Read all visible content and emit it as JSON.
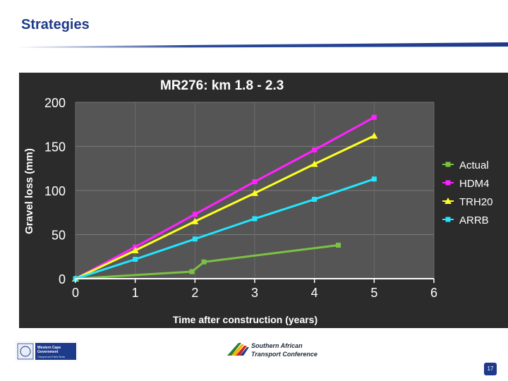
{
  "slide": {
    "title": "Strategies",
    "page_number": "17"
  },
  "footer": {
    "left_logo_line1": "Western Cape",
    "left_logo_line2": "Government",
    "left_logo_line3": "Transport and Public Works",
    "center_logo_line1": "Southern African",
    "center_logo_line2": "Transport Conference"
  },
  "colors": {
    "title": "#1f3a8a",
    "plot_bg": "#555555",
    "actual": "#7cc242",
    "hdm4": "#ff22ff",
    "trh20": "#ffff22",
    "arrb": "#22e6ff"
  },
  "chart_data": {
    "type": "line",
    "title": "MR276: km 1.8 - 2.3",
    "xlabel": "Time after construction (years)",
    "ylabel": "Gravel loss (mm)",
    "xlim": [
      0,
      6
    ],
    "ylim": [
      0,
      200
    ],
    "x_ticks": [
      0,
      1,
      2,
      3,
      4,
      5,
      6
    ],
    "y_ticks": [
      0,
      50,
      100,
      150,
      200
    ],
    "grid": true,
    "legend_position": "right",
    "series": [
      {
        "name": "Actual",
        "marker": "square",
        "x": [
          0,
          1.95,
          2.15,
          4.4
        ],
        "y": [
          0,
          8,
          19,
          38
        ]
      },
      {
        "name": "HDM4",
        "marker": "square",
        "x": [
          0,
          1,
          2,
          3,
          4,
          5
        ],
        "y": [
          0,
          36,
          73,
          110,
          146,
          183
        ]
      },
      {
        "name": "TRH20",
        "marker": "triangle",
        "x": [
          0,
          1,
          2,
          3,
          4,
          5
        ],
        "y": [
          0,
          32,
          65,
          97,
          130,
          162
        ]
      },
      {
        "name": "ARRB",
        "marker": "square",
        "x": [
          0,
          1,
          2,
          3,
          4,
          5
        ],
        "y": [
          0,
          22,
          45,
          68,
          90,
          113
        ]
      }
    ]
  }
}
